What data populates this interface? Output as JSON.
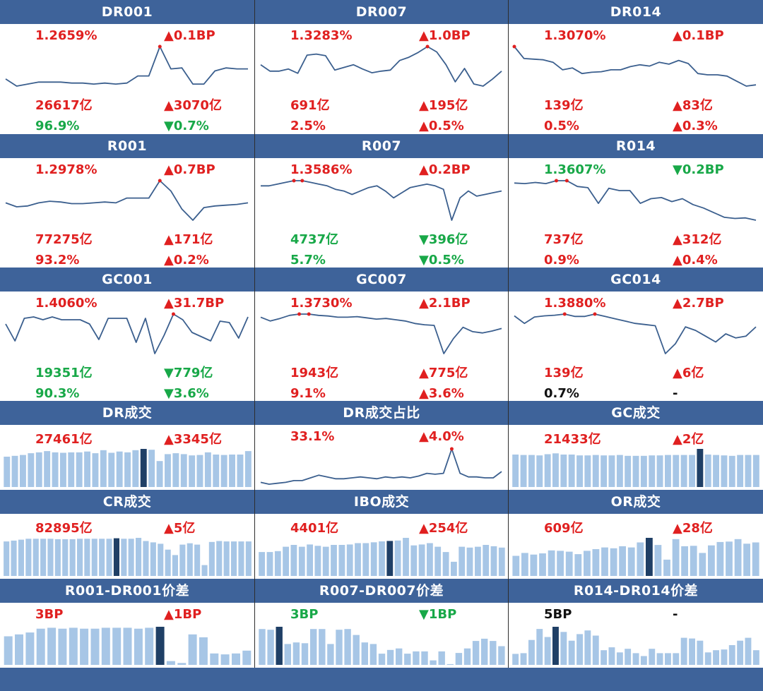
{
  "colors": {
    "header_bg": "#3e639a",
    "up": "#e02020",
    "down": "#18a848",
    "neutral": "#111111",
    "line": "#3b5f8e",
    "bar": "#a7c6e6",
    "bar_highlight": "#1f3f66",
    "marker": "#e02020"
  },
  "panels": [
    {
      "title": "DR001",
      "type": "rate",
      "lines": [
        {
          "left": {
            "text": "1.2659%",
            "tone": "up"
          },
          "right": {
            "text": "▲0.1BP",
            "tone": "up"
          }
        },
        {
          "left": {
            "text": "26617亿",
            "tone": "up"
          },
          "right": {
            "text": "▲3070亿",
            "tone": "up"
          }
        },
        {
          "left": {
            "text": "96.9%",
            "tone": "down"
          },
          "right": {
            "text": "▼0.7%",
            "tone": "down"
          }
        }
      ],
      "chart_data": {
        "type": "line",
        "values": [
          1.233,
          1.226,
          1.228,
          1.23,
          1.23,
          1.23,
          1.229,
          1.229,
          1.228,
          1.229,
          1.228,
          1.229,
          1.236,
          1.236,
          1.265,
          1.243,
          1.244,
          1.228,
          1.228,
          1.241,
          1.244,
          1.243,
          1.243
        ],
        "markers": [
          14
        ]
      }
    },
    {
      "title": "DR007",
      "type": "rate",
      "lines": [
        {
          "left": {
            "text": "1.3283%",
            "tone": "up"
          },
          "right": {
            "text": "▲1.0BP",
            "tone": "up"
          }
        },
        {
          "left": {
            "text": "691亿",
            "tone": "up"
          },
          "right": {
            "text": "▲195亿",
            "tone": "up"
          }
        },
        {
          "left": {
            "text": "2.5%",
            "tone": "up"
          },
          "right": {
            "text": "▲0.5%",
            "tone": "up"
          }
        }
      ],
      "chart_data": {
        "type": "line",
        "values": [
          1.294,
          1.282,
          1.282,
          1.286,
          1.278,
          1.312,
          1.314,
          1.311,
          1.284,
          1.289,
          1.294,
          1.286,
          1.279,
          1.282,
          1.284,
          1.302,
          1.308,
          1.317,
          1.328,
          1.318,
          1.294,
          1.262,
          1.287,
          1.258,
          1.254,
          1.267,
          1.282
        ]
      }
    },
    {
      "title": "DR014",
      "type": "rate",
      "lines": [
        {
          "left": {
            "text": "1.3070%",
            "tone": "up"
          },
          "right": {
            "text": "▲0.1BP",
            "tone": "up"
          }
        },
        {
          "left": {
            "text": "139亿",
            "tone": "up"
          },
          "right": {
            "text": "▲83亿",
            "tone": "up"
          }
        },
        {
          "left": {
            "text": "0.5%",
            "tone": "up"
          },
          "right": {
            "text": "▲0.3%",
            "tone": "up"
          }
        }
      ],
      "chart_data": {
        "type": "line",
        "values": [
          1.307,
          1.288,
          1.287,
          1.286,
          1.282,
          1.27,
          1.273,
          1.264,
          1.266,
          1.267,
          1.27,
          1.27,
          1.275,
          1.278,
          1.276,
          1.282,
          1.279,
          1.285,
          1.28,
          1.264,
          1.262,
          1.262,
          1.26,
          1.252,
          1.244,
          1.246
        ]
      }
    },
    {
      "title": "R001",
      "type": "rate",
      "lines": [
        {
          "left": {
            "text": "1.2978%",
            "tone": "up"
          },
          "right": {
            "text": "▲0.7BP",
            "tone": "up"
          }
        },
        {
          "left": {
            "text": "77275亿",
            "tone": "up"
          },
          "right": {
            "text": "▲171亿",
            "tone": "up"
          }
        },
        {
          "left": {
            "text": "93.2%",
            "tone": "up"
          },
          "right": {
            "text": "▲0.2%",
            "tone": "up"
          }
        }
      ],
      "chart_data": {
        "type": "line",
        "values": [
          1.27,
          1.265,
          1.266,
          1.27,
          1.272,
          1.271,
          1.269,
          1.269,
          1.27,
          1.271,
          1.27,
          1.276,
          1.276,
          1.276,
          1.298,
          1.285,
          1.262,
          1.248,
          1.264,
          1.266,
          1.267,
          1.268,
          1.27
        ]
      }
    },
    {
      "title": "R007",
      "type": "rate",
      "lines": [
        {
          "left": {
            "text": "1.3586%",
            "tone": "up"
          },
          "right": {
            "text": "▲0.2BP",
            "tone": "up"
          }
        },
        {
          "left": {
            "text": "4737亿",
            "tone": "down"
          },
          "right": {
            "text": "▼396亿",
            "tone": "down"
          }
        },
        {
          "left": {
            "text": "5.7%",
            "tone": "down"
          },
          "right": {
            "text": "▼0.5%",
            "tone": "down"
          }
        }
      ],
      "chart_data": {
        "type": "line",
        "values": [
          1.352,
          1.352,
          1.354,
          1.356,
          1.358,
          1.358,
          1.356,
          1.354,
          1.352,
          1.348,
          1.346,
          1.342,
          1.346,
          1.35,
          1.352,
          1.346,
          1.338,
          1.344,
          1.35,
          1.352,
          1.354,
          1.352,
          1.348,
          1.312,
          1.338,
          1.346,
          1.34,
          1.342,
          1.344,
          1.346
        ]
      }
    },
    {
      "title": "R014",
      "type": "rate",
      "lines": [
        {
          "left": {
            "text": "1.3607%",
            "tone": "down"
          },
          "right": {
            "text": "▼0.2BP",
            "tone": "down"
          }
        },
        {
          "left": {
            "text": "737亿",
            "tone": "up"
          },
          "right": {
            "text": "▲312亿",
            "tone": "up"
          }
        },
        {
          "left": {
            "text": "0.9%",
            "tone": "up"
          },
          "right": {
            "text": "▲0.4%",
            "tone": "up"
          }
        }
      ],
      "chart_data": {
        "type": "line",
        "values": [
          1.357,
          1.356,
          1.358,
          1.356,
          1.361,
          1.361,
          1.351,
          1.349,
          1.322,
          1.348,
          1.344,
          1.344,
          1.322,
          1.33,
          1.332,
          1.325,
          1.33,
          1.32,
          1.314,
          1.306,
          1.298,
          1.296,
          1.297,
          1.293
        ]
      }
    },
    {
      "title": "GC001",
      "type": "rate",
      "lines": [
        {
          "left": {
            "text": "1.4060%",
            "tone": "up"
          },
          "right": {
            "text": "▲31.7BP",
            "tone": "up"
          }
        },
        {
          "left": {
            "text": "19351亿",
            "tone": "down"
          },
          "right": {
            "text": "▼779亿",
            "tone": "down"
          }
        },
        {
          "left": {
            "text": "90.3%",
            "tone": "down"
          },
          "right": {
            "text": "▼3.6%",
            "tone": "down"
          }
        }
      ],
      "chart_data": {
        "type": "line",
        "values": [
          1.34,
          1.22,
          1.38,
          1.39,
          1.37,
          1.39,
          1.37,
          1.37,
          1.37,
          1.34,
          1.23,
          1.38,
          1.38,
          1.38,
          1.21,
          1.38,
          1.13,
          1.26,
          1.41,
          1.37,
          1.28,
          1.25,
          1.22,
          1.36,
          1.35,
          1.24,
          1.39
        ]
      }
    },
    {
      "title": "GC007",
      "type": "rate",
      "lines": [
        {
          "left": {
            "text": "1.3730%",
            "tone": "up"
          },
          "right": {
            "text": "▲2.1BP",
            "tone": "up"
          }
        },
        {
          "left": {
            "text": "1943亿",
            "tone": "up"
          },
          "right": {
            "text": "▲775亿",
            "tone": "up"
          }
        },
        {
          "left": {
            "text": "9.1%",
            "tone": "up"
          },
          "right": {
            "text": "▲3.6%",
            "tone": "up"
          }
        }
      ],
      "chart_data": {
        "type": "line",
        "values": [
          1.368,
          1.362,
          1.366,
          1.371,
          1.373,
          1.373,
          1.371,
          1.37,
          1.368,
          1.368,
          1.369,
          1.367,
          1.365,
          1.366,
          1.364,
          1.362,
          1.358,
          1.356,
          1.355,
          1.31,
          1.334,
          1.352,
          1.345,
          1.343,
          1.346,
          1.35
        ]
      }
    },
    {
      "title": "GC014",
      "type": "rate",
      "lines": [
        {
          "left": {
            "text": "1.3880%",
            "tone": "up"
          },
          "right": {
            "text": "▲2.7BP",
            "tone": "up"
          }
        },
        {
          "left": {
            "text": "139亿",
            "tone": "up"
          },
          "right": {
            "text": "▲6亿",
            "tone": "up"
          }
        },
        {
          "left": {
            "text": "0.7%",
            "tone": "neutral"
          },
          "right": {
            "text": "-",
            "tone": "neutral"
          }
        }
      ],
      "chart_data": {
        "type": "line",
        "values": [
          1.385,
          1.372,
          1.383,
          1.385,
          1.386,
          1.388,
          1.384,
          1.384,
          1.388,
          1.384,
          1.38,
          1.376,
          1.372,
          1.37,
          1.368,
          1.32,
          1.337,
          1.366,
          1.36,
          1.35,
          1.34,
          1.354,
          1.347,
          1.35,
          1.366
        ]
      }
    },
    {
      "title": "DR成交",
      "type": "bar",
      "lines": [
        {
          "left": {
            "text": "27461亿",
            "tone": "up"
          },
          "right": {
            "text": "▲3345亿",
            "tone": "up"
          }
        }
      ],
      "chart_data": {
        "type": "bar",
        "values": [
          70,
          72,
          74,
          78,
          80,
          83,
          80,
          79,
          80,
          80,
          82,
          78,
          85,
          79,
          82,
          80,
          85,
          88,
          86,
          60,
          76,
          78,
          76,
          73,
          74,
          80,
          75,
          74,
          75,
          75,
          83
        ],
        "highlight": [
          17
        ]
      }
    },
    {
      "title": "DR成交占比",
      "type": "rate",
      "lines": [
        {
          "left": {
            "text": "33.1%",
            "tone": "up"
          },
          "right": {
            "text": "▲4.0%",
            "tone": "up"
          }
        }
      ],
      "chart_data": {
        "type": "line",
        "values": [
          29.4,
          29.2,
          29.3,
          29.4,
          29.6,
          29.6,
          29.9,
          30.2,
          30.0,
          29.8,
          29.8,
          29.9,
          30.0,
          29.9,
          29.8,
          30.0,
          29.9,
          30.0,
          29.9,
          30.1,
          30.4,
          30.3,
          30.4,
          33.1,
          30.4,
          30.0,
          30.0,
          29.9,
          29.9,
          30.6
        ]
      }
    },
    {
      "title": "GC成交",
      "type": "bar",
      "lines": [
        {
          "left": {
            "text": "21433亿",
            "tone": "up"
          },
          "right": {
            "text": "▲2亿",
            "tone": "up"
          }
        }
      ],
      "chart_data": {
        "type": "bar",
        "values": [
          80,
          79,
          79,
          78,
          81,
          83,
          80,
          80,
          78,
          78,
          79,
          78,
          78,
          79,
          77,
          77,
          77,
          78,
          78,
          79,
          79,
          79,
          79,
          94,
          80,
          79,
          78,
          77,
          79,
          79,
          79
        ],
        "highlight": [
          23
        ]
      }
    },
    {
      "title": "CR成交",
      "type": "bar",
      "lines": [
        {
          "left": {
            "text": "82895亿",
            "tone": "up"
          },
          "right": {
            "text": "▲5亿",
            "tone": "up"
          }
        }
      ],
      "chart_data": {
        "type": "bar",
        "values": [
          76,
          78,
          80,
          82,
          82,
          82,
          82,
          81,
          81,
          81,
          82,
          82,
          82,
          82,
          82,
          83,
          82,
          82,
          84,
          77,
          74,
          71,
          58,
          46,
          69,
          72,
          69,
          24,
          75,
          77,
          76,
          76,
          76,
          76
        ],
        "highlight": [
          15
        ]
      }
    },
    {
      "title": "IBO成交",
      "type": "bar",
      "lines": [
        {
          "left": {
            "text": "4401亿",
            "tone": "up"
          },
          "right": {
            "text": "▲254亿",
            "tone": "up"
          }
        }
      ],
      "chart_data": {
        "type": "bar",
        "values": [
          54,
          54,
          56,
          66,
          70,
          66,
          71,
          68,
          66,
          70,
          70,
          71,
          74,
          74,
          76,
          78,
          79,
          80,
          86,
          69,
          71,
          74,
          66,
          54,
          32,
          66,
          64,
          66,
          70,
          67,
          64
        ],
        "highlight": [
          16
        ]
      }
    },
    {
      "title": "OR成交",
      "type": "bar",
      "lines": [
        {
          "left": {
            "text": "609亿",
            "tone": "up"
          },
          "right": {
            "text": "▲28亿",
            "tone": "up"
          }
        }
      ],
      "chart_data": {
        "type": "bar",
        "values": [
          48,
          55,
          51,
          54,
          61,
          60,
          58,
          52,
          60,
          64,
          68,
          66,
          71,
          68,
          80,
          91,
          74,
          39,
          88,
          71,
          72,
          55,
          73,
          81,
          82,
          88,
          77,
          80
        ],
        "highlight": [
          15
        ]
      }
    },
    {
      "title": "R001-DR001价差",
      "type": "bar",
      "lines": [
        {
          "left": {
            "text": "3BP",
            "tone": "up"
          },
          "right": {
            "text": "▲1BP",
            "tone": "up"
          }
        }
      ],
      "chart_data": {
        "type": "bar",
        "values": [
          3.0,
          3.2,
          3.4,
          3.8,
          3.9,
          3.8,
          3.9,
          3.8,
          3.8,
          3.9,
          3.9,
          3.9,
          3.8,
          3.9,
          4.0,
          0.4,
          0.2,
          3.2,
          2.9,
          1.2,
          1.1,
          1.2,
          1.5
        ],
        "highlight": [
          14
        ]
      }
    },
    {
      "title": "R007-DR007价差",
      "type": "bar",
      "lines": [
        {
          "left": {
            "text": "3BP",
            "tone": "down"
          },
          "right": {
            "text": "▼1BP",
            "tone": "down"
          }
        }
      ],
      "chart_data": {
        "type": "bar",
        "values": [
          4.8,
          4.7,
          5.1,
          2.8,
          3.0,
          2.9,
          4.8,
          4.8,
          2.8,
          4.7,
          4.8,
          4.0,
          3.0,
          2.8,
          1.5,
          2.0,
          2.2,
          1.5,
          1.8,
          1.8,
          0.6,
          1.8,
          0.1,
          1.6,
          2.2,
          3.2,
          3.5,
          3.2,
          2.5
        ],
        "highlight": [
          2
        ]
      }
    },
    {
      "title": "R014-DR014价差",
      "type": "bar",
      "lines": [
        {
          "left": {
            "text": "5BP",
            "tone": "neutral"
          },
          "right": {
            "text": "-",
            "tone": "neutral"
          }
        }
      ],
      "chart_data": {
        "type": "bar",
        "values": [
          1.5,
          1.6,
          3.4,
          4.9,
          3.8,
          5.2,
          4.5,
          3.3,
          4.2,
          4.7,
          4.0,
          2.0,
          2.4,
          1.7,
          2.2,
          1.6,
          1.2,
          2.2,
          1.6,
          1.6,
          1.6,
          3.7,
          3.6,
          3.3,
          1.7,
          2.0,
          2.1,
          2.7,
          3.3,
          3.7,
          2.0
        ],
        "highlight": [
          5
        ]
      }
    }
  ]
}
